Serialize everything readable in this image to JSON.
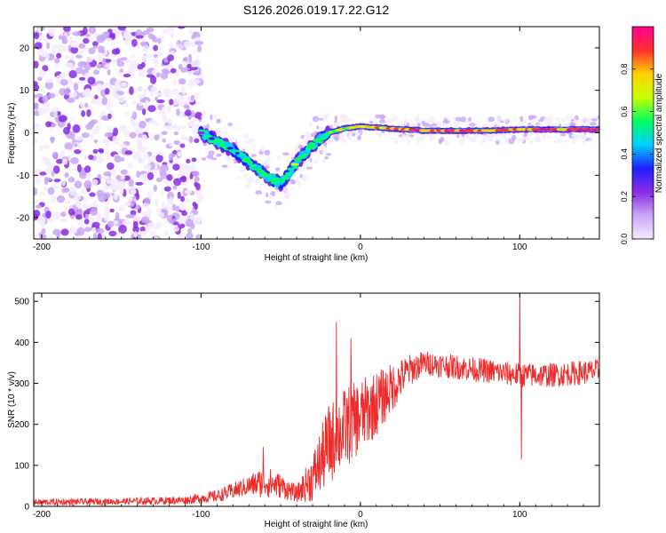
{
  "chart_data": [
    {
      "type": "heatmap",
      "title": "S126.2026.019.17.22.G12",
      "xlabel": "Height of straight line (km)",
      "ylabel": "Frequency (Hz)",
      "xlim": [
        -205,
        150
      ],
      "ylim": [
        -25,
        25
      ],
      "xticks": [
        -200,
        -100,
        0,
        100
      ],
      "xtick_labels": [
        "-200",
        "-100",
        "0",
        "100"
      ],
      "yticks": [
        -20,
        -10,
        0,
        10,
        20
      ],
      "ytick_labels": [
        "-20",
        "-10",
        "0",
        "10",
        "20"
      ],
      "colorbar": {
        "label": "Normalized spectral amplitude",
        "range": [
          0,
          1
        ],
        "ticks": [
          0.0,
          0.2,
          0.4,
          0.6,
          0.8
        ],
        "tick_labels": [
          "0.0",
          "0.2",
          "0.4",
          "0.6",
          "0.8"
        ],
        "colors": [
          "#f4ecff",
          "#c9a6f5",
          "#8a2be2",
          "#2020ff",
          "#00d0ff",
          "#00ff60",
          "#c8ff00",
          "#ffd000",
          "#ff3030",
          "#ff0090"
        ]
      },
      "ridge": {
        "x": [
          -100,
          -90,
          -80,
          -70,
          -60,
          -50,
          -40,
          -30,
          -20,
          -10,
          0,
          20,
          40,
          60,
          80,
          100,
          120,
          150
        ],
        "frequency": [
          0,
          -2,
          -4,
          -7,
          -10,
          -12,
          -7,
          -3,
          0,
          1,
          1.5,
          1,
          0.5,
          0.5,
          0.5,
          0.8,
          0.8,
          0.8
        ],
        "amplitude": [
          0.35,
          0.35,
          0.4,
          0.45,
          0.4,
          0.45,
          0.5,
          0.55,
          0.6,
          0.7,
          0.75,
          0.8,
          0.85,
          0.85,
          0.85,
          0.85,
          0.9,
          0.9
        ]
      },
      "noise_region_x": [
        -205,
        -100
      ]
    },
    {
      "type": "line",
      "title": "",
      "xlabel": "Height of straight line (km)",
      "ylabel": "SNR (10 * v/v)",
      "xlim": [
        -205,
        150
      ],
      "ylim": [
        0,
        520
      ],
      "xticks": [
        -200,
        -100,
        0,
        100
      ],
      "xtick_labels": [
        "-200",
        "-100",
        "0",
        "100"
      ],
      "yticks": [
        0,
        100,
        200,
        300,
        400,
        500
      ],
      "ytick_labels": [
        "0",
        "100",
        "200",
        "300",
        "400",
        "500"
      ],
      "color": "#ee2b2b",
      "envelope": {
        "x": [
          -205,
          -150,
          -110,
          -90,
          -70,
          -60,
          -50,
          -40,
          -30,
          -20,
          -10,
          0,
          10,
          20,
          30,
          40,
          60,
          80,
          100,
          120,
          150
        ],
        "mean": [
          10,
          12,
          15,
          25,
          50,
          60,
          50,
          30,
          70,
          150,
          190,
          220,
          250,
          290,
          330,
          350,
          340,
          330,
          320,
          320,
          330
        ],
        "spread": [
          8,
          8,
          10,
          15,
          25,
          40,
          30,
          20,
          60,
          100,
          100,
          90,
          80,
          60,
          40,
          30,
          30,
          30,
          30,
          30,
          30
        ]
      },
      "spikes": [
        {
          "x": -61,
          "y": 145
        },
        {
          "x": -15,
          "y": 450
        },
        {
          "x": -6,
          "y": 410
        },
        {
          "x": 100,
          "y": 520
        },
        {
          "x": 101,
          "y": 115
        }
      ]
    }
  ]
}
